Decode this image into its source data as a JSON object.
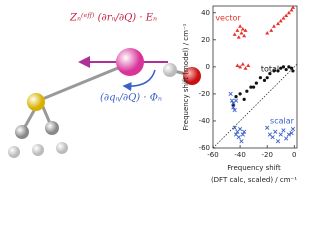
{
  "diagram": {
    "labels": [
      "Zₙ⁽ᵉᶠᶠ⁾ (∂rₙ/∂Q) · Eₙ",
      "(∂qₙ/∂Q) · Φₙ"
    ]
  },
  "chart_data": {
    "type": "scatter",
    "ylabel": "Frequency shift (model) / cm⁻¹",
    "xlabel": [
      "Frequency shift",
      "(DFT calc, scaled) / cm⁻¹"
    ],
    "xlim": [
      -60,
      2
    ],
    "xticks": [
      -60,
      -40,
      -20,
      0
    ],
    "ylim": [
      -60,
      45
    ],
    "yticks": [
      40,
      20,
      0,
      -20,
      -40,
      -60
    ],
    "diagonal": true,
    "series": [
      {
        "name": "vector",
        "color": "#e8322e",
        "marker": "triangle",
        "x": [
          -44,
          -42,
          -41,
          -40,
          -39,
          -38,
          -37,
          -36,
          -42,
          -40,
          -38,
          -36,
          -34,
          -20,
          -17,
          -15,
          -12,
          -10,
          -8,
          -6,
          -4,
          -2,
          -1
        ],
        "values": [
          24,
          27,
          22,
          30,
          25,
          28,
          23,
          27,
          1,
          0,
          2,
          -1,
          1,
          25,
          27,
          30,
          32,
          34,
          36,
          38,
          40,
          42,
          44
        ]
      },
      {
        "name": "total",
        "color": "#111111",
        "marker": "dot",
        "x": [
          -45,
          -43,
          -40,
          -37,
          -35,
          -32,
          -30,
          -28,
          -25,
          -22,
          -20,
          -18,
          -15,
          -12,
          -10,
          -8,
          -6,
          -4,
          -2,
          -1
        ],
        "values": [
          -28,
          -22,
          -20,
          -24,
          -18,
          -15,
          -15,
          -12,
          -8,
          -10,
          -8,
          -5,
          -3,
          -3,
          -1,
          0,
          -2,
          0,
          -1,
          -3
        ]
      },
      {
        "name": "scalar",
        "color": "#3a5fc8",
        "marker": "cross",
        "x": [
          -47,
          -46,
          -45,
          -44,
          -43,
          -42,
          -41,
          -40,
          -39,
          -38,
          -37,
          -45,
          -44,
          -43,
          -20,
          -18,
          -16,
          -14,
          -12,
          -10,
          -8,
          -6,
          -4,
          -2,
          -1
        ],
        "values": [
          -20,
          -25,
          -30,
          -45,
          -50,
          -48,
          -52,
          -46,
          -55,
          -50,
          -48,
          -27,
          -32,
          -25,
          -45,
          -50,
          -52,
          -48,
          -55,
          -50,
          -47,
          -53,
          -50,
          -49,
          -46
        ]
      }
    ]
  }
}
